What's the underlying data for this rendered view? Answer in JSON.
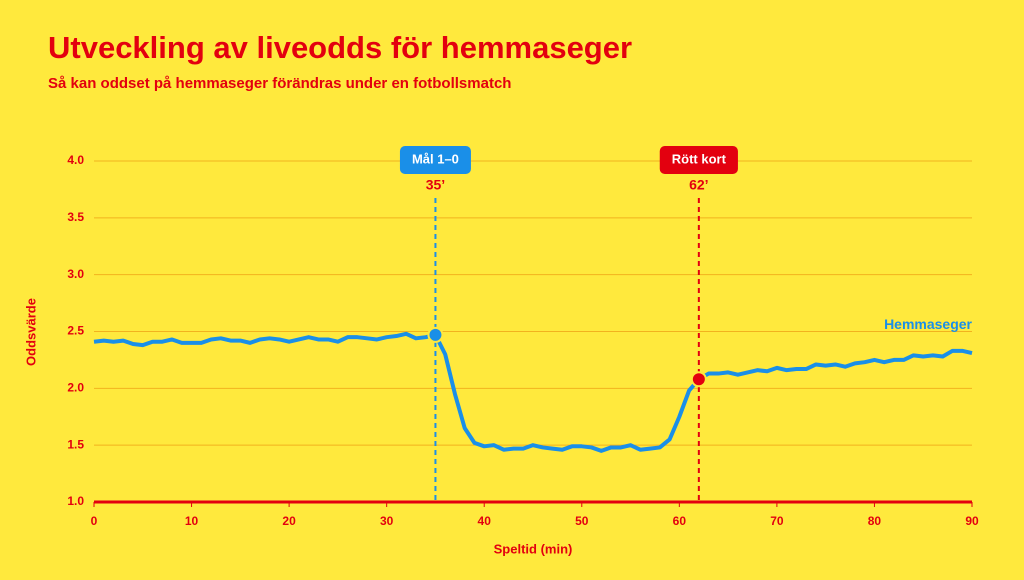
{
  "chart_data": {
    "type": "line",
    "title": "Utveckling av liveodds för hemmaseger",
    "subtitle": "Så kan oddset på hemmaseger förändras under en fotbollsmatch",
    "x_label": "Speltid (min)",
    "y_label": "Oddsvärde",
    "x": [
      0,
      1,
      2,
      3,
      4,
      5,
      6,
      7,
      8,
      9,
      10,
      11,
      12,
      13,
      14,
      15,
      16,
      17,
      18,
      19,
      20,
      21,
      22,
      23,
      24,
      25,
      26,
      27,
      28,
      29,
      30,
      31,
      32,
      33,
      34,
      35,
      36,
      37,
      38,
      39,
      40,
      41,
      42,
      43,
      44,
      45,
      46,
      47,
      48,
      49,
      50,
      51,
      52,
      53,
      54,
      55,
      56,
      57,
      58,
      59,
      60,
      61,
      62,
      63,
      64,
      65,
      66,
      67,
      68,
      69,
      70,
      71,
      72,
      73,
      74,
      75,
      76,
      77,
      78,
      79,
      80,
      81,
      82,
      83,
      84,
      85,
      86,
      87,
      88,
      89,
      90
    ],
    "series": [
      {
        "name": "Hemmaseger",
        "color": "#1a8fe8",
        "values": [
          2.41,
          2.42,
          2.41,
          2.42,
          2.39,
          2.38,
          2.41,
          2.41,
          2.43,
          2.4,
          2.4,
          2.4,
          2.43,
          2.44,
          2.42,
          2.42,
          2.4,
          2.43,
          2.44,
          2.43,
          2.41,
          2.43,
          2.45,
          2.43,
          2.43,
          2.41,
          2.45,
          2.45,
          2.44,
          2.43,
          2.45,
          2.46,
          2.48,
          2.44,
          2.45,
          2.47,
          2.3,
          1.95,
          1.65,
          1.52,
          1.49,
          1.5,
          1.46,
          1.47,
          1.47,
          1.5,
          1.48,
          1.47,
          1.46,
          1.49,
          1.49,
          1.48,
          1.45,
          1.48,
          1.48,
          1.5,
          1.46,
          1.47,
          1.48,
          1.55,
          1.75,
          1.98,
          2.08,
          2.13,
          2.13,
          2.14,
          2.12,
          2.14,
          2.16,
          2.15,
          2.18,
          2.16,
          2.17,
          2.17,
          2.21,
          2.2,
          2.21,
          2.19,
          2.22,
          2.23,
          2.25,
          2.23,
          2.25,
          2.25,
          2.29,
          2.28,
          2.29,
          2.28,
          2.33,
          2.33,
          2.31
        ]
      }
    ],
    "annotations": [
      {
        "x": 35,
        "label": "Mål 1–0",
        "time_label": "35’",
        "color": "#1a8fe8"
      },
      {
        "x": 62,
        "label": "Rött kort",
        "time_label": "62’",
        "color": "#e3000f"
      }
    ],
    "xlim": [
      0,
      90
    ],
    "xticks": [
      0,
      10,
      20,
      30,
      40,
      50,
      60,
      70,
      80,
      90
    ],
    "ylim": [
      1.0,
      4.0
    ],
    "yticks": [
      {
        "value": 1.0,
        "label": "1.0"
      },
      1.5,
      {
        "value": 2.0,
        "label": "2.0"
      },
      2.5,
      {
        "value": 3.0,
        "label": "3.0"
      },
      3.5,
      {
        "value": 4.0,
        "label": "4.0"
      }
    ],
    "grid": true
  }
}
